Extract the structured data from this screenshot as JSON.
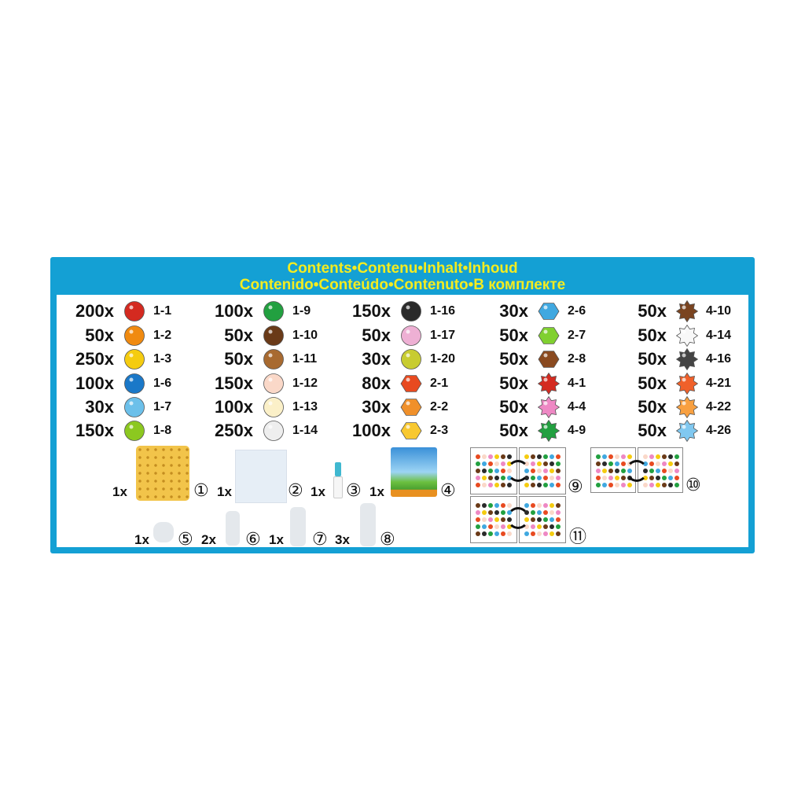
{
  "header": {
    "title_line1": "Contents•Contenu•Inhalt•Inhoud",
    "title_line2": "Contenido•Conteúdo•Contenuto•В комплекте"
  },
  "colors": {
    "frame": "#14a0d4",
    "title": "#f4ec20"
  },
  "beads": [
    [
      {
        "qty": "200x",
        "code": "1-1",
        "shape": "circle",
        "color": "#d42a20"
      },
      {
        "qty": "50x",
        "code": "1-2",
        "shape": "circle",
        "color": "#f08a10"
      },
      {
        "qty": "250x",
        "code": "1-3",
        "shape": "circle",
        "color": "#f5cc10"
      },
      {
        "qty": "100x",
        "code": "1-6",
        "shape": "circle",
        "color": "#1a78c8"
      },
      {
        "qty": "30x",
        "code": "1-7",
        "shape": "circle",
        "color": "#6cc0ea"
      },
      {
        "qty": "150x",
        "code": "1-8",
        "shape": "circle",
        "color": "#8cc820"
      }
    ],
    [
      {
        "qty": "100x",
        "code": "1-9",
        "shape": "circle",
        "color": "#22a040"
      },
      {
        "qty": "50x",
        "code": "1-10",
        "shape": "circle",
        "color": "#6a3a18"
      },
      {
        "qty": "50x",
        "code": "1-11",
        "shape": "circle",
        "color": "#a86a30"
      },
      {
        "qty": "150x",
        "code": "1-12",
        "shape": "circle",
        "color": "#fad8c8"
      },
      {
        "qty": "100x",
        "code": "1-13",
        "shape": "circle",
        "color": "#fbf0c8"
      },
      {
        "qty": "250x",
        "code": "1-14",
        "shape": "circle",
        "color": "#eeeeee"
      }
    ],
    [
      {
        "qty": "150x",
        "code": "1-16",
        "shape": "circle",
        "color": "#2a2a2a"
      },
      {
        "qty": "50x",
        "code": "1-17",
        "shape": "circle",
        "color": "#eeb0d4"
      },
      {
        "qty": "30x",
        "code": "1-20",
        "shape": "circle",
        "color": "#c8cc30"
      },
      {
        "qty": "80x",
        "code": "2-1",
        "shape": "hexagon",
        "color": "#e84a20"
      },
      {
        "qty": "30x",
        "code": "2-2",
        "shape": "hexagon",
        "color": "#f0902a"
      },
      {
        "qty": "100x",
        "code": "2-3",
        "shape": "hexagon",
        "color": "#f8c830"
      }
    ],
    [
      {
        "qty": "30x",
        "code": "2-6",
        "shape": "hexagon",
        "color": "#40a8e0"
      },
      {
        "qty": "50x",
        "code": "2-7",
        "shape": "hexagon",
        "color": "#80d030"
      },
      {
        "qty": "50x",
        "code": "2-8",
        "shape": "hexagon",
        "color": "#8a4a20"
      },
      {
        "qty": "50x",
        "code": "4-1",
        "shape": "star",
        "color": "#d42a20"
      },
      {
        "qty": "50x",
        "code": "4-4",
        "shape": "star",
        "color": "#ee88c4"
      },
      {
        "qty": "50x",
        "code": "4-9",
        "shape": "star",
        "color": "#22a040"
      }
    ],
    [
      {
        "qty": "50x",
        "code": "4-10",
        "shape": "star",
        "color": "#7a4420"
      },
      {
        "qty": "50x",
        "code": "4-14",
        "shape": "star",
        "color": "#f8f8f8"
      },
      {
        "qty": "50x",
        "code": "4-16",
        "shape": "star",
        "color": "#444444"
      },
      {
        "qty": "50x",
        "code": "4-21",
        "shape": "star",
        "color": "#f0602a"
      },
      {
        "qty": "50x",
        "code": "4-22",
        "shape": "star",
        "color": "#f8a040"
      },
      {
        "qty": "50x",
        "code": "4-26",
        "shape": "star",
        "color": "#80c8f0"
      }
    ]
  ],
  "accessories": [
    {
      "qty": "1x",
      "num": "①",
      "icon": "pegboard-icon"
    },
    {
      "qty": "1x",
      "num": "②",
      "icon": "tray-sheet-icon"
    },
    {
      "qty": "1x",
      "num": "③",
      "icon": "spray-bottle-icon"
    },
    {
      "qty": "1x",
      "num": "④",
      "icon": "display-stand-icon"
    },
    {
      "qty": "1x",
      "num": "⑤",
      "icon": "connector-icon"
    },
    {
      "qty": "2x",
      "num": "⑥",
      "icon": "connector-icon"
    },
    {
      "qty": "1x",
      "num": "⑦",
      "icon": "connector-icon"
    },
    {
      "qty": "3x",
      "num": "⑧",
      "icon": "connector-icon"
    }
  ],
  "templates": [
    {
      "num": "⑨"
    },
    {
      "num": "⑩"
    },
    {
      "num": "⑪"
    }
  ]
}
